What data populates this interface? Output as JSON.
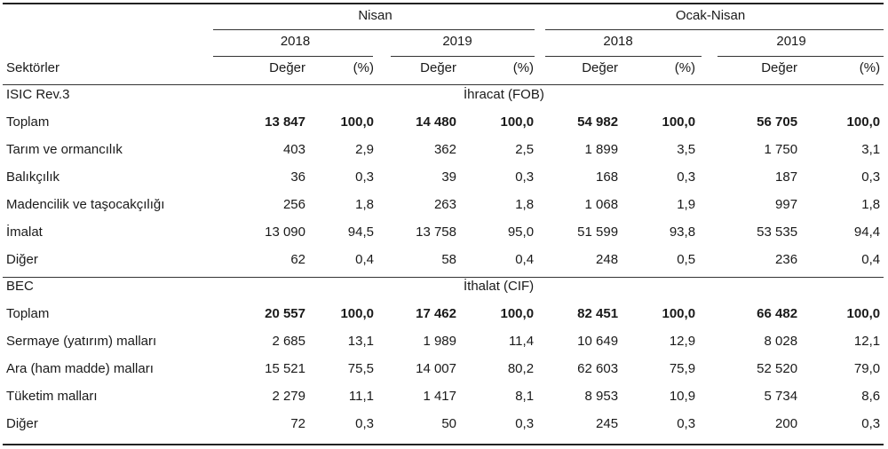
{
  "header": {
    "group1": "Nisan",
    "group2": "Ocak-Nisan",
    "years": [
      "2018",
      "2019",
      "2018",
      "2019"
    ],
    "row_label": "Sektörler",
    "value_label": "Değer",
    "pct_label": "(%)"
  },
  "sections": [
    {
      "classification": "ISIC  Rev.3",
      "title": "İhracat (FOB)",
      "rows": [
        {
          "label": "Toplam",
          "values": [
            "13 847",
            "100,0",
            "14 480",
            "100,0",
            "54 982",
            "100,0",
            "56 705",
            "100,0"
          ]
        },
        {
          "label": "Tarım ve ormancılık",
          "values": [
            "403",
            "2,9",
            "362",
            "2,5",
            "1 899",
            "3,5",
            "1 750",
            "3,1"
          ]
        },
        {
          "label": "Balıkçılık",
          "values": [
            "36",
            "0,3",
            "39",
            "0,3",
            "168",
            "0,3",
            "187",
            "0,3"
          ]
        },
        {
          "label": "Madencilik ve taşocakçılığı",
          "values": [
            "256",
            "1,8",
            "263",
            "1,8",
            "1 068",
            "1,9",
            "997",
            "1,8"
          ]
        },
        {
          "label": "İmalat",
          "values": [
            "13 090",
            "94,5",
            "13 758",
            "95,0",
            "51 599",
            "93,8",
            "53 535",
            "94,4"
          ]
        },
        {
          "label": "Diğer",
          "values": [
            "62",
            "0,4",
            "58",
            "0,4",
            "248",
            "0,5",
            "236",
            "0,4"
          ]
        }
      ]
    },
    {
      "classification": "BEC",
      "title": "İthalat (CIF)",
      "rows": [
        {
          "label": "Toplam",
          "values": [
            "20 557",
            "100,0",
            "17 462",
            "100,0",
            "82 451",
            "100,0",
            "66 482",
            "100,0"
          ]
        },
        {
          "label": "Sermaye (yatırım) malları",
          "values": [
            "2 685",
            "13,1",
            "1 989",
            "11,4",
            "10 649",
            "12,9",
            "8 028",
            "12,1"
          ]
        },
        {
          "label": "Ara (ham madde) malları",
          "values": [
            "15 521",
            "75,5",
            "14 007",
            "80,2",
            "62 603",
            "75,9",
            "52 520",
            "79,0"
          ]
        },
        {
          "label": "Tüketim malları",
          "values": [
            "2 279",
            "11,1",
            "1 417",
            "8,1",
            "8 953",
            "10,9",
            "5 734",
            "8,6"
          ]
        },
        {
          "label": "Diğer",
          "values": [
            "72",
            "0,3",
            "50",
            "0,3",
            "245",
            "0,3",
            "200",
            "0,3"
          ]
        }
      ]
    }
  ]
}
